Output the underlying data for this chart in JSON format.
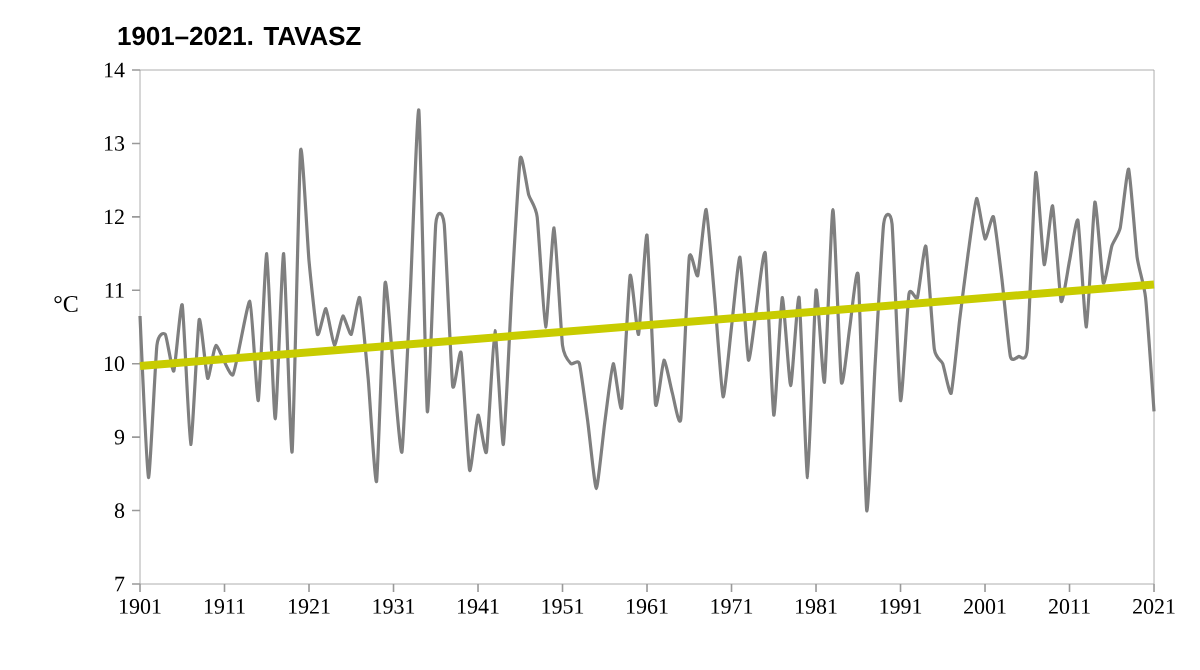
{
  "chart_data": {
    "type": "line",
    "title": "1901–2021. TAVASZ",
    "ylabel": "°C",
    "xlim": [
      1901,
      2021
    ],
    "ylim": [
      7,
      14
    ],
    "xticks": [
      1901,
      1911,
      1921,
      1931,
      1941,
      1951,
      1961,
      1971,
      1981,
      1991,
      2001,
      2011,
      2021
    ],
    "yticks": [
      7,
      8,
      9,
      10,
      11,
      12,
      13,
      14
    ],
    "grid": false,
    "series": [
      {
        "color": "#7f7f7f",
        "x": [
          1901,
          1902,
          1903,
          1904,
          1905,
          1906,
          1907,
          1908,
          1909,
          1910,
          1912,
          1914,
          1915,
          1916,
          1917,
          1918,
          1919,
          1920,
          1921,
          1922,
          1923,
          1924,
          1925,
          1926,
          1927,
          1928,
          1929,
          1930,
          1931,
          1932,
          1933,
          1934,
          1935,
          1936,
          1937,
          1938,
          1939,
          1940,
          1941,
          1942,
          1943,
          1944,
          1945,
          1946,
          1947,
          1948,
          1949,
          1950,
          1951,
          1952,
          1953,
          1954,
          1955,
          1956,
          1957,
          1958,
          1959,
          1960,
          1961,
          1962,
          1963,
          1964,
          1965,
          1966,
          1967,
          1968,
          1969,
          1970,
          1971,
          1972,
          1973,
          1974,
          1975,
          1976,
          1977,
          1978,
          1979,
          1980,
          1981,
          1982,
          1983,
          1984,
          1985,
          1986,
          1987,
          1988,
          1989,
          1990,
          1991,
          1992,
          1993,
          1994,
          1995,
          1996,
          1997,
          1998,
          1999,
          2000,
          2001,
          2002,
          2003,
          2004,
          2005,
          2006,
          2007,
          2008,
          2009,
          2010,
          2011,
          2012,
          2013,
          2014,
          2015,
          2016,
          2017,
          2018,
          2019,
          2020,
          2021
        ],
        "values": [
          10.65,
          8.45,
          10.25,
          10.4,
          9.9,
          10.8,
          8.9,
          10.6,
          9.8,
          10.25,
          9.85,
          10.85,
          9.5,
          11.5,
          9.25,
          11.5,
          8.8,
          12.9,
          11.4,
          10.4,
          10.75,
          10.25,
          10.65,
          10.4,
          10.9,
          9.8,
          8.4,
          11.1,
          9.9,
          8.8,
          11.0,
          13.45,
          9.35,
          11.9,
          11.9,
          9.7,
          10.15,
          8.55,
          9.3,
          8.8,
          10.45,
          8.9,
          11.0,
          12.8,
          12.3,
          12.0,
          10.5,
          11.85,
          10.25,
          10.0,
          10.0,
          9.2,
          8.3,
          9.2,
          10.0,
          9.4,
          11.2,
          10.4,
          11.75,
          9.45,
          10.05,
          9.6,
          9.25,
          11.45,
          11.2,
          12.1,
          10.9,
          9.55,
          10.5,
          11.45,
          10.05,
          10.8,
          11.5,
          9.3,
          10.9,
          9.7,
          10.9,
          8.45,
          11.0,
          9.75,
          12.1,
          9.75,
          10.5,
          11.2,
          8.0,
          10.0,
          11.9,
          11.9,
          9.5,
          10.95,
          10.9,
          11.6,
          10.2,
          10.0,
          9.6,
          10.6,
          11.5,
          12.25,
          11.7,
          12.0,
          11.15,
          10.1,
          10.1,
          10.2,
          12.6,
          11.35,
          12.15,
          10.85,
          11.4,
          11.95,
          10.5,
          12.2,
          11.1,
          11.6,
          11.85,
          12.65,
          11.45,
          10.9,
          9.35
        ]
      },
      {
        "color": "#c8cc00",
        "x": [
          1901,
          2021
        ],
        "values": [
          9.97,
          11.08
        ]
      }
    ]
  }
}
